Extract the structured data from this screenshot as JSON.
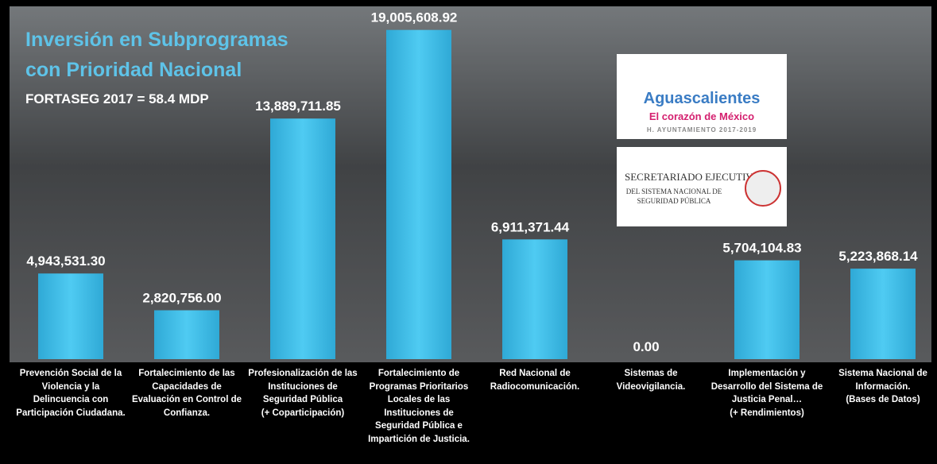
{
  "chart_data": {
    "type": "bar",
    "title": [
      "Inversión en Subprogramas",
      "con Prioridad Nacional"
    ],
    "subtitle": "FORTASEG 2017 = 58.4 MDP",
    "logos": {
      "municipal": {
        "name": "Aguascalientes",
        "tagline": "El corazón de México",
        "caption": "H. AYUNTAMIENTO 2017-2019"
      },
      "federal": {
        "line1": "SECRETARIADO EJECUTIVO",
        "line2": "DEL SISTEMA NACIONAL DE",
        "line3": "SEGURIDAD PÚBLICA"
      }
    },
    "categories": [
      "Prevención Social de la\nViolencia y la\nDelincuencia con\nParticipación Ciudadana.",
      "Fortalecimiento de las\nCapacidades de\nEvaluación en Control de\nConfianza.",
      "Profesionalización de las\nInstituciones de\nSeguridad Pública\n(+ Coparticipación)",
      "Fortalecimiento de\nProgramas Prioritarios\nLocales de las\nInstituciones de\nSeguridad Pública e\nImpartición de Justicia.",
      "Red Nacional de\nRadiocomunicación.",
      "Sistemas de\nVideovigilancia.",
      "Implementación y\nDesarrollo del Sistema de\nJusticia Penal…\n(+ Rendimientos)",
      "Sistema Nacional de\nInformación.\n(Bases de Datos)"
    ],
    "values": [
      4943531.3,
      2820756.0,
      13889711.85,
      19005608.92,
      6911371.44,
      0.0,
      5704104.83,
      5223868.14
    ],
    "value_labels": [
      "4,943,531.30",
      "2,820,756.00",
      "13,889,711.85",
      "19,005,608.92",
      "6,911,371.44",
      "0.00",
      "5,704,104.83",
      "5,223,868.14"
    ],
    "color": "#3ec0ea",
    "ylim": [
      0,
      20000000
    ]
  }
}
